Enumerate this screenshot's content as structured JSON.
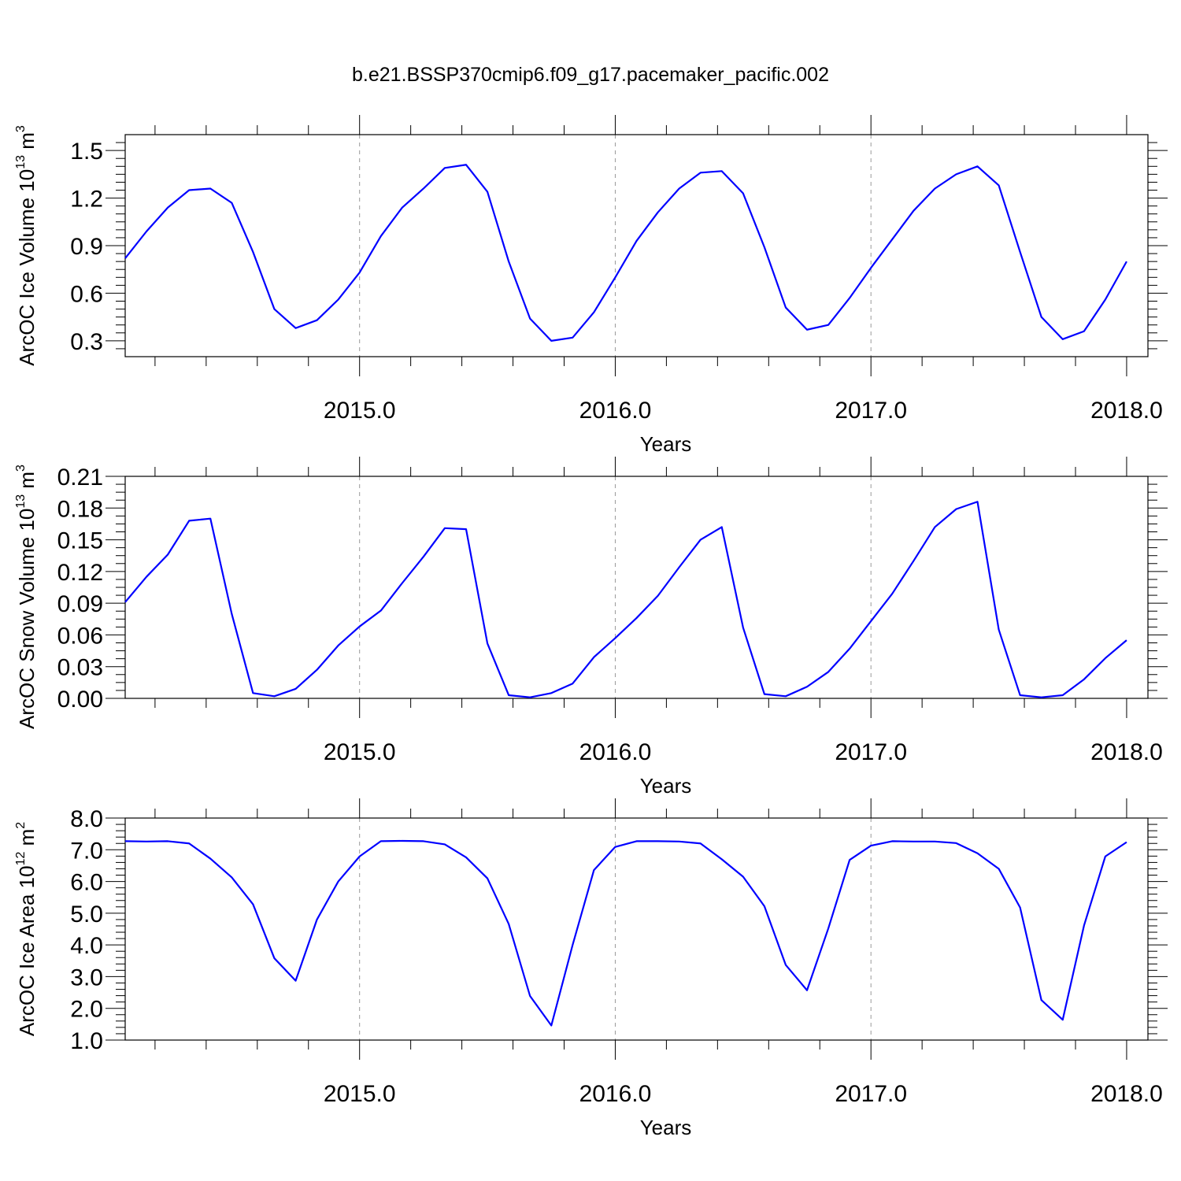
{
  "title": "b.e21.BSSP370cmip6.f09_g17.pacemaker_pacific.002",
  "chart_data": [
    {
      "type": "line",
      "xlabel": "Years",
      "ylabel": "ArcOC Ice Volume 10",
      "ylabel_exp": "13",
      "ylabel_unit": "m",
      "ylabel_unit_exp": "3",
      "xlim": [
        2014.0833,
        2018.0833
      ],
      "ylim": [
        0.2,
        1.6
      ],
      "xticks": [
        2015.0,
        2016.0,
        2017.0,
        2018.0
      ],
      "xtick_labels": [
        "2015.0",
        "2016.0",
        "2017.0",
        "2018.0"
      ],
      "yticks": [
        0.3,
        0.6,
        0.9,
        1.2,
        1.5
      ],
      "ytick_labels": [
        "0.3",
        "0.6",
        "0.9",
        "1.2",
        "1.5"
      ],
      "ytick_minor": [
        0.25,
        0.35,
        0.4,
        0.45,
        0.5,
        0.55,
        0.65,
        0.7,
        0.75,
        0.8,
        0.85,
        0.95,
        1.0,
        1.05,
        1.1,
        1.15,
        1.25,
        1.3,
        1.35,
        1.4,
        1.45,
        1.55
      ],
      "grid_x": true,
      "series": [
        {
          "color": "#0000ff",
          "values": [
            0.82,
            0.99,
            1.14,
            1.25,
            1.26,
            1.17,
            0.86,
            0.5,
            0.38,
            0.43,
            0.56,
            0.73,
            0.96,
            1.14,
            1.26,
            1.39,
            1.41,
            1.24,
            0.8,
            0.44,
            0.3,
            0.32,
            0.48,
            0.7,
            0.93,
            1.11,
            1.26,
            1.36,
            1.37,
            1.23,
            0.89,
            0.51,
            0.37,
            0.4,
            0.57,
            0.76,
            0.94,
            1.12,
            1.26,
            1.35,
            1.4,
            1.28,
            0.86,
            0.45,
            0.31,
            0.36,
            0.56,
            0.8
          ]
        }
      ]
    },
    {
      "type": "line",
      "xlabel": "Years",
      "ylabel": "ArcOC Snow Volume 10",
      "ylabel_exp": "13",
      "ylabel_unit": "m",
      "ylabel_unit_exp": "3",
      "xlim": [
        2014.0833,
        2018.0833
      ],
      "ylim": [
        0.0,
        0.21
      ],
      "xticks": [
        2015.0,
        2016.0,
        2017.0,
        2018.0
      ],
      "xtick_labels": [
        "2015.0",
        "2016.0",
        "2017.0",
        "2018.0"
      ],
      "yticks": [
        0.0,
        0.03,
        0.06,
        0.09,
        0.12,
        0.15,
        0.18,
        0.21
      ],
      "ytick_labels": [
        "0.00",
        "0.03",
        "0.06",
        "0.09",
        "0.12",
        "0.15",
        "0.18",
        "0.21"
      ],
      "ytick_minor": [
        0.0075,
        0.015,
        0.0225,
        0.0375,
        0.045,
        0.0525,
        0.0675,
        0.075,
        0.0825,
        0.0975,
        0.105,
        0.1125,
        0.1275,
        0.135,
        0.1425,
        0.1575,
        0.165,
        0.1725,
        0.1875,
        0.195,
        0.2025
      ],
      "grid_x": true,
      "series": [
        {
          "color": "#0000ff",
          "values": [
            0.091,
            0.115,
            0.136,
            0.168,
            0.17,
            0.08,
            0.005,
            0.002,
            0.009,
            0.027,
            0.05,
            0.068,
            0.083,
            0.109,
            0.134,
            0.161,
            0.16,
            0.052,
            0.003,
            0.001,
            0.005,
            0.014,
            0.039,
            0.057,
            0.076,
            0.097,
            0.124,
            0.15,
            0.162,
            0.067,
            0.004,
            0.002,
            0.011,
            0.025,
            0.047,
            0.073,
            0.099,
            0.13,
            0.162,
            0.179,
            0.186,
            0.065,
            0.003,
            0.001,
            0.003,
            0.018,
            0.038,
            0.055
          ]
        }
      ]
    },
    {
      "type": "line",
      "xlabel": "Years",
      "ylabel": "ArcOC Ice Area 10",
      "ylabel_exp": "12",
      "ylabel_unit": "m",
      "ylabel_unit_exp": "2",
      "xlim": [
        2014.0833,
        2018.0833
      ],
      "ylim": [
        1.0,
        8.0
      ],
      "xticks": [
        2015.0,
        2016.0,
        2017.0,
        2018.0
      ],
      "xtick_labels": [
        "2015.0",
        "2016.0",
        "2017.0",
        "2018.0"
      ],
      "yticks": [
        1.0,
        2.0,
        3.0,
        4.0,
        5.0,
        6.0,
        7.0,
        8.0
      ],
      "ytick_labels": [
        "1.0",
        "2.0",
        "3.0",
        "4.0",
        "5.0",
        "6.0",
        "7.0",
        "8.0"
      ],
      "ytick_minor": [
        1.2,
        1.4,
        1.6,
        1.8,
        2.2,
        2.4,
        2.6,
        2.8,
        3.2,
        3.4,
        3.6,
        3.8,
        4.2,
        4.4,
        4.6,
        4.8,
        5.2,
        5.4,
        5.6,
        5.8,
        6.2,
        6.4,
        6.6,
        6.8,
        7.2,
        7.4,
        7.6,
        7.8
      ],
      "grid_x": true,
      "series": [
        {
          "color": "#0000ff",
          "values": [
            7.27,
            7.26,
            7.27,
            7.2,
            6.72,
            6.13,
            5.28,
            3.58,
            2.87,
            4.8,
            6.0,
            6.79,
            7.27,
            7.28,
            7.27,
            7.17,
            6.76,
            6.1,
            4.66,
            2.39,
            1.46,
            4.0,
            6.36,
            7.09,
            7.27,
            7.27,
            7.26,
            7.2,
            6.7,
            6.15,
            5.22,
            3.37,
            2.57,
            4.52,
            6.68,
            7.13,
            7.27,
            7.26,
            7.26,
            7.21,
            6.89,
            6.4,
            5.18,
            2.26,
            1.64,
            4.61,
            6.79,
            7.24
          ]
        }
      ]
    }
  ]
}
